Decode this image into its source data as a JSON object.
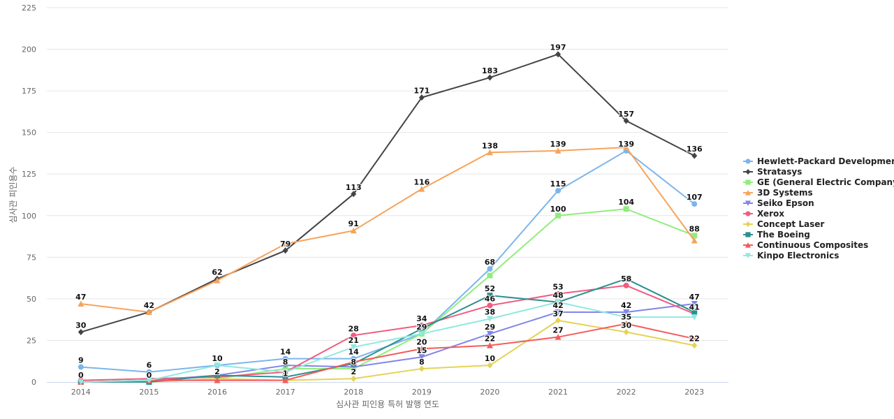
{
  "chart_data": {
    "type": "line",
    "title": "",
    "xlabel": "심사관 피인용 특허 발행 연도",
    "ylabel": "심사관 피인용수",
    "ylim": [
      0,
      225
    ],
    "yticks": [
      0,
      25,
      50,
      75,
      100,
      125,
      150,
      175,
      200,
      225
    ],
    "grid": true,
    "legend_position": "right",
    "categories": [
      "2014",
      "2015",
      "2016",
      "2017",
      "2018",
      "2019",
      "2020",
      "2021",
      "2022",
      "2023"
    ],
    "series": [
      {
        "name": "Hewlett-Packard Development",
        "color": "#7cb5ec",
        "marker": "circle",
        "values": [
          9,
          6,
          10,
          14,
          14,
          29,
          68,
          115,
          139,
          107
        ]
      },
      {
        "name": "Stratasys",
        "color": "#434348",
        "marker": "diamond",
        "values": [
          30,
          42,
          62,
          79,
          113,
          171,
          183,
          197,
          157,
          136
        ]
      },
      {
        "name": "GE (General Electric Company)",
        "color": "#90ed7d",
        "marker": "square",
        "values": [
          0,
          0,
          2,
          8,
          8,
          29,
          64,
          100,
          104,
          88
        ]
      },
      {
        "name": "3D Systems",
        "color": "#f7a35c",
        "marker": "triangle",
        "values": [
          47,
          42,
          61,
          83,
          91,
          116,
          138,
          139,
          141,
          85
        ]
      },
      {
        "name": "Seiko Epson",
        "color": "#8085e9",
        "marker": "triangle-down",
        "values": [
          0,
          1,
          4,
          10,
          9,
          15,
          29,
          42,
          42,
          47
        ]
      },
      {
        "name": "Xerox",
        "color": "#f15c80",
        "marker": "circle",
        "values": [
          1,
          2,
          3,
          6,
          28,
          34,
          46,
          53,
          58,
          41
        ]
      },
      {
        "name": "Concept Laser",
        "color": "#e4d354",
        "marker": "diamond",
        "values": [
          0,
          0,
          2,
          1,
          2,
          8,
          10,
          37,
          30,
          22
        ]
      },
      {
        "name": "The Boeing",
        "color": "#2b908f",
        "marker": "square",
        "values": [
          0,
          0,
          4,
          3,
          11,
          32,
          52,
          48,
          62,
          42
        ]
      },
      {
        "name": "Continuous Composites",
        "color": "#f45b5b",
        "marker": "triangle",
        "values": [
          0,
          1,
          1,
          1,
          12,
          20,
          22,
          27,
          35,
          26
        ]
      },
      {
        "name": "Kinpo Electronics",
        "color": "#91e8e1",
        "marker": "triangle-down",
        "values": [
          0,
          1,
          10,
          6,
          21,
          29,
          38,
          48,
          39,
          39
        ]
      }
    ],
    "data_labels": [
      {
        "x": "2014",
        "text": "9",
        "y": 9
      },
      {
        "x": "2014",
        "text": "30",
        "y": 30
      },
      {
        "x": "2014",
        "text": "47",
        "y": 47
      },
      {
        "x": "2014",
        "text": "0",
        "y": 0
      },
      {
        "x": "2015",
        "text": "6",
        "y": 6
      },
      {
        "x": "2015",
        "text": "42",
        "y": 42
      },
      {
        "x": "2015",
        "text": "0",
        "y": 0
      },
      {
        "x": "2016",
        "text": "10",
        "y": 10
      },
      {
        "x": "2016",
        "text": "62",
        "y": 62
      },
      {
        "x": "2016",
        "text": "2",
        "y": 2
      },
      {
        "x": "2017",
        "text": "14",
        "y": 14
      },
      {
        "x": "2017",
        "text": "79",
        "y": 79
      },
      {
        "x": "2017",
        "text": "8",
        "y": 8
      },
      {
        "x": "2017",
        "text": "1",
        "y": 1
      },
      {
        "x": "2018",
        "text": "14",
        "y": 14
      },
      {
        "x": "2018",
        "text": "113",
        "y": 113
      },
      {
        "x": "2018",
        "text": "91",
        "y": 91
      },
      {
        "x": "2018",
        "text": "28",
        "y": 28
      },
      {
        "x": "2018",
        "text": "21",
        "y": 21
      },
      {
        "x": "2018",
        "text": "8",
        "y": 8
      },
      {
        "x": "2018",
        "text": "2",
        "y": 2
      },
      {
        "x": "2019",
        "text": "171",
        "y": 171
      },
      {
        "x": "2019",
        "text": "116",
        "y": 116
      },
      {
        "x": "2019",
        "text": "34",
        "y": 34
      },
      {
        "x": "2019",
        "text": "29",
        "y": 29
      },
      {
        "x": "2019",
        "text": "20",
        "y": 20
      },
      {
        "x": "2019",
        "text": "15",
        "y": 15
      },
      {
        "x": "2019",
        "text": "8",
        "y": 8
      },
      {
        "x": "2020",
        "text": "183",
        "y": 183
      },
      {
        "x": "2020",
        "text": "138",
        "y": 138
      },
      {
        "x": "2020",
        "text": "68",
        "y": 68
      },
      {
        "x": "2020",
        "text": "52",
        "y": 52
      },
      {
        "x": "2020",
        "text": "46",
        "y": 46
      },
      {
        "x": "2020",
        "text": "38",
        "y": 38
      },
      {
        "x": "2020",
        "text": "29",
        "y": 29
      },
      {
        "x": "2020",
        "text": "22",
        "y": 22
      },
      {
        "x": "2020",
        "text": "10",
        "y": 10
      },
      {
        "x": "2021",
        "text": "197",
        "y": 197
      },
      {
        "x": "2021",
        "text": "139",
        "y": 139
      },
      {
        "x": "2021",
        "text": "115",
        "y": 115
      },
      {
        "x": "2021",
        "text": "100",
        "y": 100
      },
      {
        "x": "2021",
        "text": "53",
        "y": 53
      },
      {
        "x": "2021",
        "text": "48",
        "y": 48
      },
      {
        "x": "2021",
        "text": "42",
        "y": 42
      },
      {
        "x": "2021",
        "text": "37",
        "y": 37
      },
      {
        "x": "2021",
        "text": "27",
        "y": 27
      },
      {
        "x": "2022",
        "text": "157",
        "y": 157
      },
      {
        "x": "2022",
        "text": "139",
        "y": 139
      },
      {
        "x": "2022",
        "text": "104",
        "y": 104
      },
      {
        "x": "2022",
        "text": "58",
        "y": 58
      },
      {
        "x": "2022",
        "text": "42",
        "y": 42
      },
      {
        "x": "2022",
        "text": "35",
        "y": 35
      },
      {
        "x": "2022",
        "text": "30",
        "y": 30
      },
      {
        "x": "2023",
        "text": "136",
        "y": 136
      },
      {
        "x": "2023",
        "text": "107",
        "y": 107
      },
      {
        "x": "2023",
        "text": "88",
        "y": 88
      },
      {
        "x": "2023",
        "text": "47",
        "y": 47
      },
      {
        "x": "2023",
        "text": "41",
        "y": 41
      },
      {
        "x": "2023",
        "text": "22",
        "y": 22
      }
    ]
  }
}
